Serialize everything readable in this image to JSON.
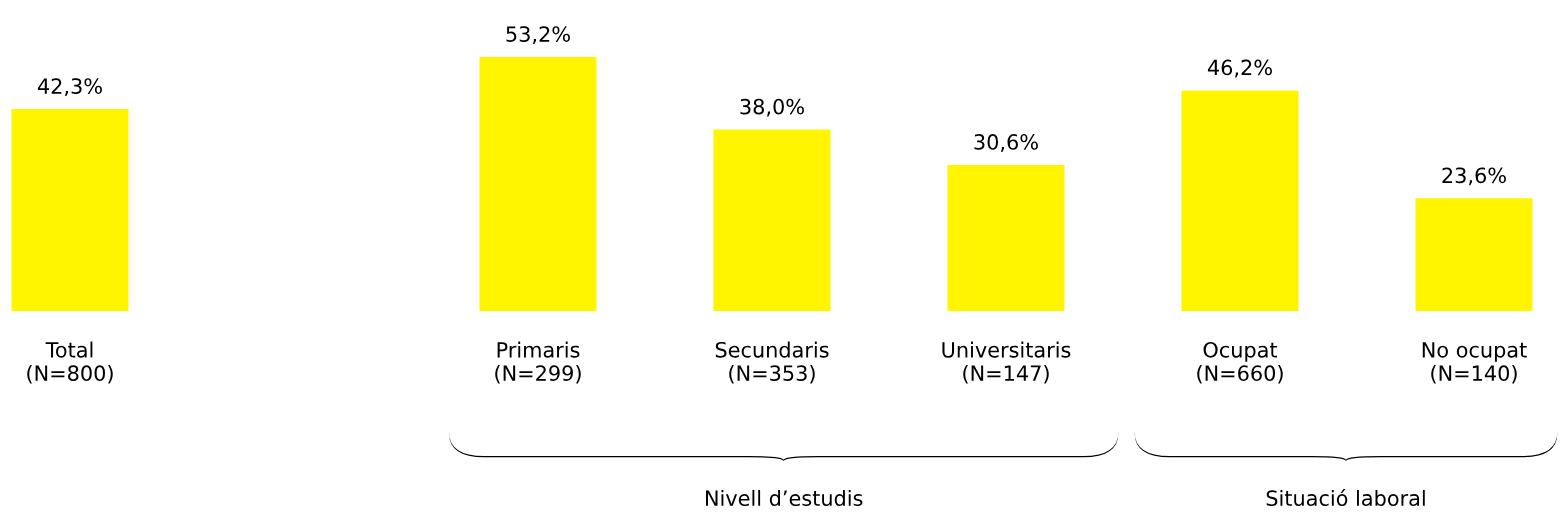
{
  "chart_data": {
    "type": "bar",
    "categories": [
      "Total\n(N=800)",
      null,
      "Primaris\n(N=299)",
      "Secundaris\n(N=353)",
      "Universitaris\n(N=147)",
      "Ocupat\n(N=660)",
      "No ocupat\n(N=140)"
    ],
    "values": [
      42.3,
      null,
      53.2,
      38.0,
      30.6,
      46.2,
      23.6
    ],
    "value_labels": [
      "42,3%",
      null,
      "53,2%",
      "38,0%",
      "30,6%",
      "46,2%",
      "23,6%"
    ],
    "color": "#fff500",
    "grid": false,
    "legend": false,
    "annotations": [
      "Nivell d’estudis",
      "Situació laboral"
    ]
  }
}
